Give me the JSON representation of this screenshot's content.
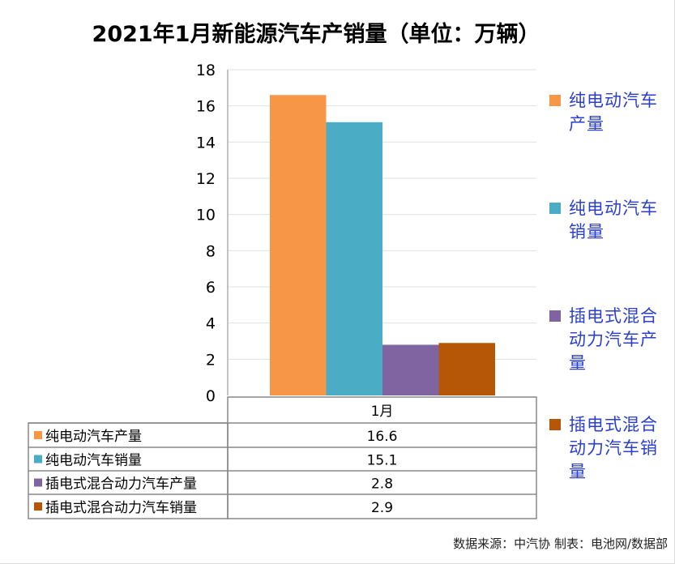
{
  "chart_data": {
    "type": "bar",
    "title": "2021年1月新能源汽车产销量（单位：万辆）",
    "categories": [
      "1月"
    ],
    "series": [
      {
        "name": "纯电动汽车产量",
        "values": [
          16.6
        ],
        "color": "#f79646"
      },
      {
        "name": "纯电动汽车销量",
        "values": [
          15.1
        ],
        "color": "#4bacc6"
      },
      {
        "name": "插电式混合动力汽车产量",
        "values": [
          2.8
        ],
        "color": "#8064a2"
      },
      {
        "name": "插电式混合动力汽车销量",
        "values": [
          2.9
        ],
        "color": "#b65708"
      }
    ],
    "ylim": [
      0,
      18
    ],
    "yticks": [
      "0",
      "2",
      "4",
      "6",
      "8",
      "10",
      "12",
      "14",
      "16",
      "18"
    ],
    "grid": true,
    "legend": "right",
    "data_table": true,
    "table_values": [
      "16.6",
      "15.1",
      "2.8",
      "2.9"
    ]
  },
  "source": "数据来源：中汽协  制表：电池网/数据部"
}
